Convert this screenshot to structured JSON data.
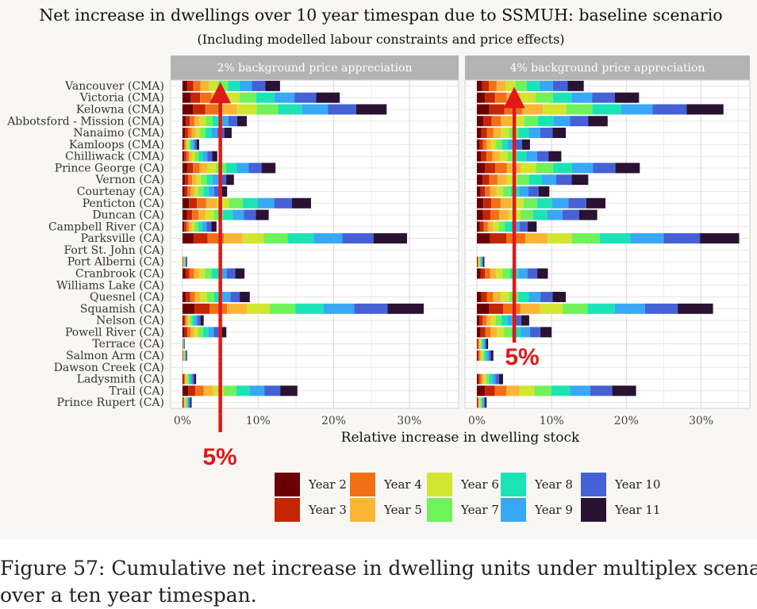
{
  "chart_data": {
    "type": "bar",
    "stacked": true,
    "orientation": "horizontal",
    "title": "Net increase in dwellings over 10 year timespan due to SSMUH: baseline scenario",
    "subtitle": "(Including modelled labour constraints and price effects)",
    "xlabel": "Relative increase in dwelling stock",
    "ylabel": "",
    "xlim": [
      0,
      36
    ],
    "x_ticks": [
      "0%",
      "10%",
      "20%",
      "30%"
    ],
    "x_tick_values": [
      0,
      10,
      20,
      30
    ],
    "grid": true,
    "legend_position": "bottom",
    "categories": [
      "Vancouver (CMA)",
      "Victoria (CMA)",
      "Kelowna (CMA)",
      "Abbotsford - Mission (CMA)",
      "Nanaimo (CMA)",
      "Kamloops (CMA)",
      "Chilliwack (CMA)",
      "Prince George (CA)",
      "Vernon (CA)",
      "Courtenay (CA)",
      "Penticton (CA)",
      "Duncan (CA)",
      "Campbell River (CA)",
      "Parksville (CA)",
      "Fort St. John (CA)",
      "Port Alberni (CA)",
      "Cranbrook (CA)",
      "Williams Lake (CA)",
      "Quesnel (CA)",
      "Squamish (CA)",
      "Nelson (CA)",
      "Powell River (CA)",
      "Terrace (CA)",
      "Salmon Arm (CA)",
      "Dawson Creek (CA)",
      "Ladysmith (CA)",
      "Trail (CA)",
      "Prince Rupert (CA)"
    ],
    "series_names": [
      "Year 2",
      "Year 3",
      "Year 4",
      "Year 5",
      "Year 6",
      "Year 7",
      "Year 8",
      "Year 9",
      "Year 10",
      "Year 11"
    ],
    "series_colors": [
      "#6b0000",
      "#c42503",
      "#f26f18",
      "#fbb535",
      "#d2e52f",
      "#6ff25a",
      "#1ae4b6",
      "#38a8f5",
      "#4661d6",
      "#2a1233"
    ],
    "panels": [
      {
        "title": "2% background price appreciation",
        "totals": [
          12.9,
          20.8,
          27.0,
          8.5,
          6.5,
          2.2,
          4.6,
          12.3,
          6.8,
          5.9,
          17.0,
          11.4,
          4.5,
          29.7,
          0.0,
          0.6,
          8.2,
          0.0,
          8.9,
          31.9,
          2.8,
          5.8,
          0.3,
          0.6,
          0.0,
          1.8,
          15.2,
          1.2
        ]
      },
      {
        "title": "4% background price appreciation",
        "totals": [
          14.3,
          21.7,
          33.0,
          17.5,
          11.9,
          7.1,
          11.3,
          21.8,
          14.9,
          9.7,
          17.2,
          16.1,
          8.0,
          35.1,
          0.0,
          1.0,
          9.5,
          0.0,
          11.9,
          31.6,
          7.0,
          10.0,
          1.5,
          2.2,
          0.0,
          3.5,
          21.3,
          1.3
        ]
      }
    ],
    "annotations": [
      {
        "text": "5%",
        "x": 5,
        "panel": 0
      },
      {
        "text": "5%",
        "x": 5,
        "panel": 1
      }
    ]
  },
  "caption": {
    "line1": "Figure 57:  Cumulative net increase in dwelling units under multiplex scenario",
    "line2": "over a ten year timespan."
  }
}
